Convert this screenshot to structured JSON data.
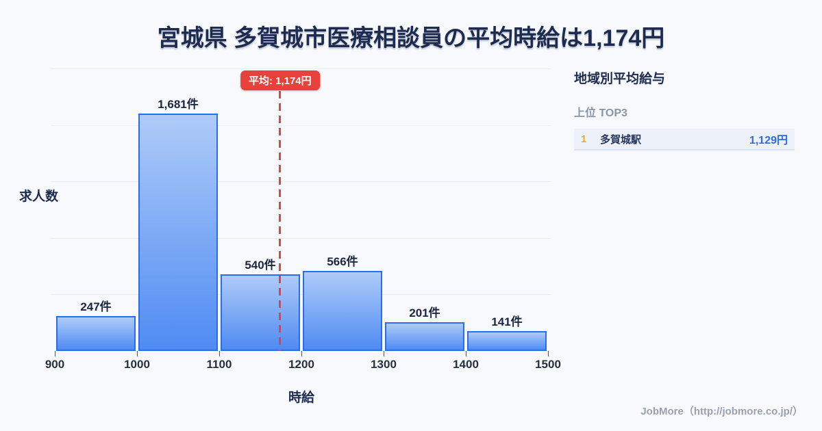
{
  "header": {
    "title": "宮城県 多賀城市医療相談員の平均時給は1,174円"
  },
  "chart_data": {
    "type": "bar",
    "title": "宮城県 多賀城市医療相談員の平均時給は1,174円",
    "xlabel": "時給",
    "ylabel": "求人数",
    "bin_edges": [
      900,
      1000,
      1100,
      1200,
      1300,
      1400,
      1500
    ],
    "x_tick_labels": [
      "900",
      "1000",
      "1100",
      "1200",
      "1300",
      "1400",
      "1500"
    ],
    "values": [
      247,
      1681,
      540,
      566,
      201,
      141
    ],
    "bar_labels": [
      "247件",
      "1,681件",
      "540件",
      "566件",
      "201件",
      "141件"
    ],
    "ylim": [
      0,
      2000
    ],
    "ytick_step": 400,
    "grid": true,
    "legend": "none",
    "average": {
      "value": 1174,
      "label": "平均: 1,174円"
    },
    "colors": {
      "bar_top": "#aecbf8",
      "bar_bottom": "#4f8bf3",
      "bar_border": "#2b6ce8",
      "average_red": "#e8413c",
      "grid": "#e9eef6"
    }
  },
  "sidebar": {
    "heading": "地域別平均給与",
    "subheading": "上位 TOP3",
    "rank_color": "#f0a91e",
    "value_color": "#2b6ce8",
    "rows": [
      {
        "rank": "1",
        "name": "多賀城駅",
        "value": "1,129円"
      }
    ]
  },
  "footer": {
    "credit": "JobMore（http://jobmore.co.jp/）"
  }
}
